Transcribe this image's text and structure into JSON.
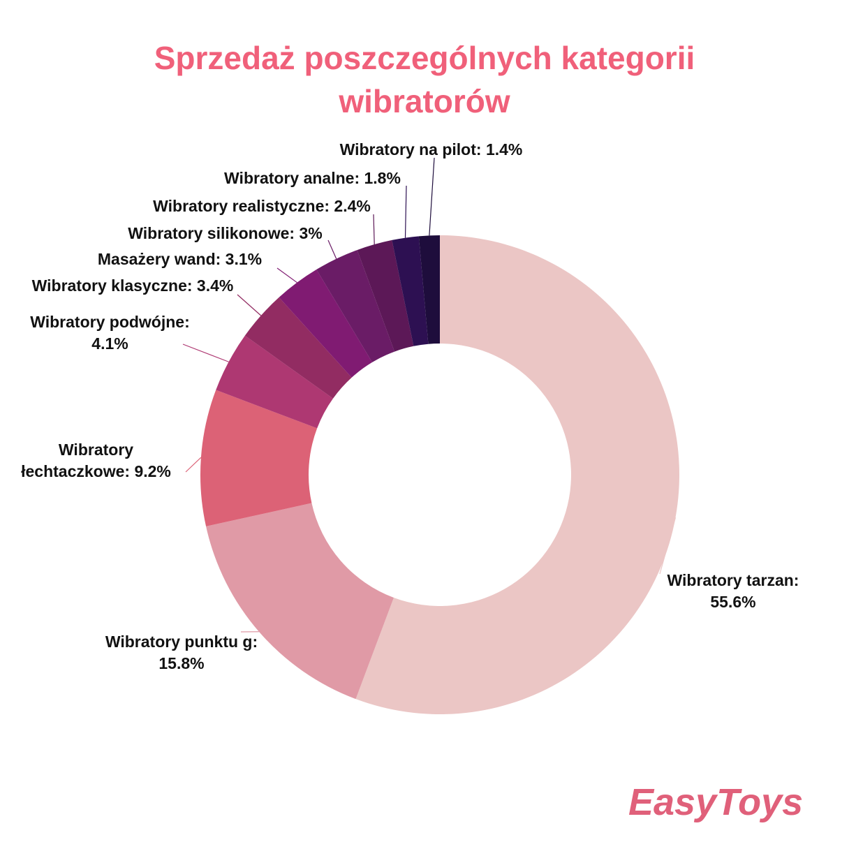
{
  "chart_data": {
    "type": "donut",
    "title": "Sprzedaż poszczególnych kategorii wibratorów",
    "categories": [
      "Wibratory tarzan:",
      "Wibratory punktu g:",
      "Wibratory łechtaczkowe:",
      "Wibratory podwójne:",
      "Wibratory klasyczne:",
      "Masażery wand:",
      "Wibratory silikonowe:",
      "Wibratory realistyczne:",
      "Wibratory analne:",
      "Wibratory na pilot:"
    ],
    "values": [
      55.6,
      15.8,
      9.2,
      4.1,
      3.4,
      3.1,
      3,
      2.4,
      1.8,
      1.4
    ],
    "value_labels": [
      "55.6%",
      "15.8%",
      "9.2%",
      "4.1%",
      "3.4%",
      "3.1%",
      "3%",
      "2.4%",
      "1.8%",
      "1.4%"
    ],
    "colors": [
      "#ebc6c5",
      "#e09aa6",
      "#dc6276",
      "#ae3872",
      "#922c62",
      "#801b72",
      "#6a1c66",
      "#5c1857",
      "#2d1052",
      "#1e0d3c"
    ]
  },
  "logo": "EasyToys"
}
